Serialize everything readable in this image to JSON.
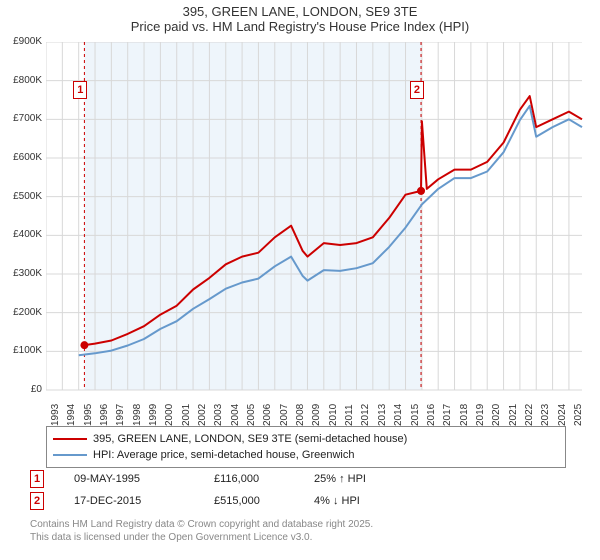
{
  "title": {
    "line1": "395, GREEN LANE, LONDON, SE9 3TE",
    "line2": "Price paid vs. HM Land Registry's House Price Index (HPI)",
    "fontsize": 13,
    "color": "#333333"
  },
  "chart": {
    "type": "line",
    "background_color": "#ffffff",
    "plot_band_color": "#eef5fb",
    "grid_color": "#d8d8d8",
    "marker_line_color": "#cc0000",
    "marker_line_dash": "3,3",
    "yaxis": {
      "min": 0,
      "max": 900000,
      "tick_step": 100000,
      "labels": [
        "£0",
        "£100K",
        "£200K",
        "£300K",
        "£400K",
        "£500K",
        "£600K",
        "£700K",
        "£800K",
        "£900K"
      ],
      "label_fontsize": 10,
      "label_color": "#333333"
    },
    "xaxis": {
      "min": 1993,
      "max": 2025.8,
      "ticks": [
        1993,
        1994,
        1995,
        1996,
        1997,
        1998,
        1999,
        2000,
        2001,
        2002,
        2003,
        2004,
        2005,
        2006,
        2007,
        2008,
        2009,
        2010,
        2011,
        2012,
        2013,
        2014,
        2015,
        2016,
        2017,
        2018,
        2019,
        2020,
        2021,
        2022,
        2023,
        2024,
        2025
      ],
      "label_fontsize": 10,
      "label_color": "#333333",
      "label_rotation": -90
    },
    "series": [
      {
        "name": "395, GREEN LANE, LONDON, SE9 3TE (semi-detached house)",
        "color": "#cc0000",
        "line_width": 2,
        "data_x": [
          1995.35,
          1996,
          1997,
          1998,
          1999,
          2000,
          2001,
          2002,
          2003,
          2004,
          2005,
          2006,
          2007,
          2008,
          2008.7,
          2009,
          2010,
          2011,
          2012,
          2013,
          2014,
          2015,
          2015.95,
          2016,
          2016.3,
          2017,
          2018,
          2019,
          2020,
          2021,
          2022,
          2022.6,
          2023,
          2024,
          2025,
          2025.8
        ],
        "data_y": [
          116000,
          120000,
          128000,
          145000,
          165000,
          195000,
          218000,
          260000,
          290000,
          325000,
          345000,
          355000,
          395000,
          425000,
          360000,
          345000,
          380000,
          375000,
          380000,
          395000,
          445000,
          505000,
          515000,
          695000,
          520000,
          545000,
          570000,
          570000,
          590000,
          640000,
          725000,
          760000,
          680000,
          700000,
          720000,
          700000
        ]
      },
      {
        "name": "HPI: Average price, semi-detached house, Greenwich",
        "color": "#6699cc",
        "line_width": 2,
        "data_x": [
          1995,
          1996,
          1997,
          1998,
          1999,
          2000,
          2001,
          2002,
          2003,
          2004,
          2005,
          2006,
          2007,
          2008,
          2008.7,
          2009,
          2010,
          2011,
          2012,
          2013,
          2014,
          2015,
          2016,
          2017,
          2018,
          2019,
          2020,
          2021,
          2022,
          2022.6,
          2023,
          2024,
          2025,
          2025.8
        ],
        "data_y": [
          90000,
          95000,
          102000,
          115000,
          132000,
          158000,
          178000,
          210000,
          235000,
          262000,
          278000,
          288000,
          320000,
          345000,
          295000,
          283000,
          310000,
          308000,
          315000,
          328000,
          370000,
          420000,
          480000,
          520000,
          548000,
          548000,
          565000,
          615000,
          698000,
          735000,
          655000,
          680000,
          700000,
          680000
        ]
      }
    ],
    "sale_markers": [
      {
        "index": 1,
        "x": 1995.35,
        "y": 116000,
        "badge_x": 1995.1,
        "badge_y": 800000
      },
      {
        "index": 2,
        "x": 2015.95,
        "y": 515000,
        "badge_x": 2015.7,
        "badge_y": 800000
      }
    ],
    "sale_dot_color": "#cc0000",
    "sale_dot_radius": 4
  },
  "legend": {
    "border_color": "#888888",
    "fontsize": 11,
    "items": [
      {
        "color": "#cc0000",
        "label": "395, GREEN LANE, LONDON, SE9 3TE (semi-detached house)"
      },
      {
        "color": "#6699cc",
        "label": "HPI: Average price, semi-detached house, Greenwich"
      }
    ]
  },
  "sales": [
    {
      "marker": "1",
      "date": "09-MAY-1995",
      "price": "£116,000",
      "delta": "25% ↑ HPI"
    },
    {
      "marker": "2",
      "date": "17-DEC-2015",
      "price": "£515,000",
      "delta": "4% ↓ HPI"
    }
  ],
  "attribution": {
    "line1": "Contains HM Land Registry data © Crown copyright and database right 2025.",
    "line2": "This data is licensed under the Open Government Licence v3.0.",
    "color": "#888888",
    "fontsize": 10
  }
}
